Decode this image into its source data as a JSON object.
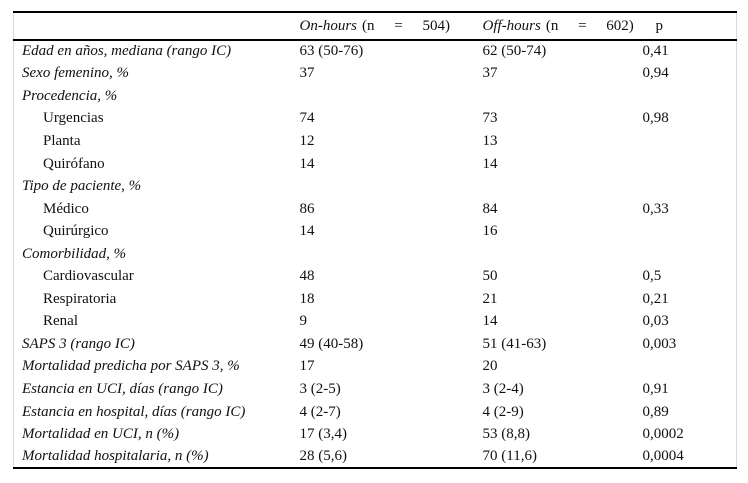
{
  "table": {
    "header": {
      "empty": "",
      "on_hours_label": "On-hours",
      "on_hours_n": "(n = 504)",
      "off_hours_label": "Off-hours",
      "off_hours_n": "(n = 602)",
      "p_label": "p"
    },
    "rows": [
      {
        "label": "Edad en años, mediana (rango IC)",
        "indent": false,
        "on": "63 (50-76)",
        "off": "62 (50-74)",
        "p": "0,41"
      },
      {
        "label": "Sexo femenino, %",
        "indent": false,
        "on": "37",
        "off": "37",
        "p": "0,94"
      },
      {
        "label": "Procedencia, %",
        "indent": false,
        "on": "",
        "off": "",
        "p": ""
      },
      {
        "label": "Urgencias",
        "indent": true,
        "on": "74",
        "off": "73",
        "p": "0,98"
      },
      {
        "label": "Planta",
        "indent": true,
        "on": "12",
        "off": "13",
        "p": ""
      },
      {
        "label": "Quirófano",
        "indent": true,
        "on": "14",
        "off": "14",
        "p": ""
      },
      {
        "label": "Tipo de paciente, %",
        "indent": false,
        "on": "",
        "off": "",
        "p": ""
      },
      {
        "label": "Médico",
        "indent": true,
        "on": "86",
        "off": "84",
        "p": "0,33"
      },
      {
        "label": "Quirúrgico",
        "indent": true,
        "on": "14",
        "off": "16",
        "p": ""
      },
      {
        "label": "Comorbilidad, %",
        "indent": false,
        "on": "",
        "off": "",
        "p": ""
      },
      {
        "label": "Cardiovascular",
        "indent": true,
        "on": "48",
        "off": "50",
        "p": "0,5"
      },
      {
        "label": "Respiratoria",
        "indent": true,
        "on": "18",
        "off": "21",
        "p": "0,21"
      },
      {
        "label": "Renal",
        "indent": true,
        "on": "9",
        "off": "14",
        "p": "0,03"
      },
      {
        "label": "SAPS 3 (rango IC)",
        "indent": false,
        "on": "49 (40-58)",
        "off": "51 (41-63)",
        "p": "0,003"
      },
      {
        "label": "Mortalidad predicha por SAPS 3, %",
        "indent": false,
        "on": "17",
        "off": "20",
        "p": ""
      },
      {
        "label": "Estancia en UCI, días (rango IC)",
        "indent": false,
        "on": "3 (2-5)",
        "off": "3 (2-4)",
        "p": "0,91"
      },
      {
        "label": "Estancia en hospital, días (rango IC)",
        "indent": false,
        "on": "4 (2-7)",
        "off": "4 (2-9)",
        "p": "0,89"
      },
      {
        "label": "Mortalidad en UCI, n (%)",
        "indent": false,
        "on": "17 (3,4)",
        "off": "53 (8,8)",
        "p": "0,0002"
      },
      {
        "label": "Mortalidad hospitalaria, n (%)",
        "indent": false,
        "on": "28 (5,6)",
        "off": "70 (11,6)",
        "p": "0,0004"
      }
    ]
  }
}
